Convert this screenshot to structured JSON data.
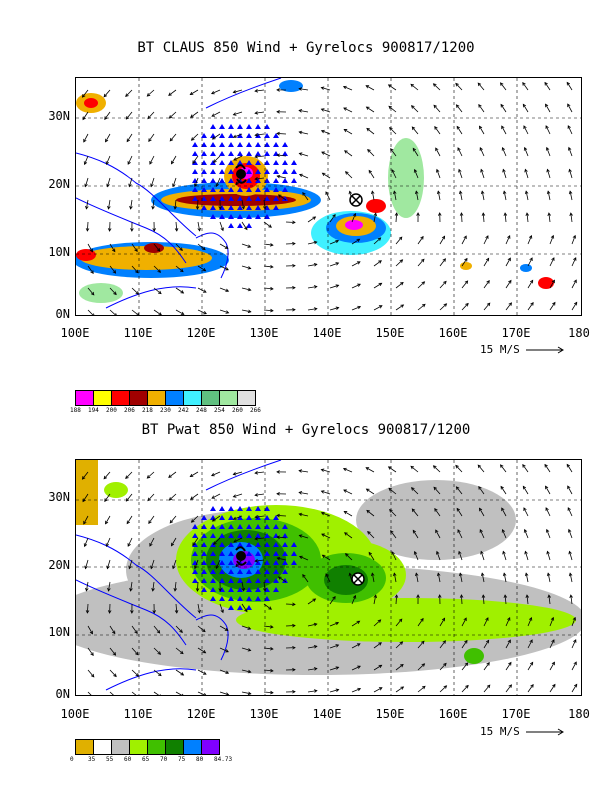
{
  "panel_top": {
    "title": "BT CLAUS 850 Wind + Gyrelocs 900817/1200",
    "y_labels": [
      "30N",
      "20N",
      "10N",
      "0N"
    ],
    "x_labels": [
      "100E",
      "110E",
      "120E",
      "130E",
      "140E",
      "150E",
      "160E",
      "170E",
      "180"
    ],
    "vector_ref": "15 M/S",
    "colorbar_values": [
      "188",
      "194",
      "200",
      "206",
      "218",
      "230",
      "242",
      "248",
      "254",
      "260",
      "266"
    ],
    "colorbar_colors": [
      "#ff00ff",
      "#ffff00",
      "#ff0000",
      "#a00000",
      "#f0b000",
      "#0080ff",
      "#40f0ff",
      "#60c080",
      "#a0e8a0",
      "#e0e0e0"
    ]
  },
  "panel_bottom": {
    "title": "BT Pwat 850 Wind + Gyrelocs 900817/1200",
    "y_labels": [
      "30N",
      "20N",
      "10N",
      "0N"
    ],
    "x_labels": [
      "100E",
      "110E",
      "120E",
      "130E",
      "140E",
      "150E",
      "160E",
      "170E",
      "180"
    ],
    "vector_ref": "15 M/S",
    "colorbar_values": [
      "0",
      "35",
      "55",
      "60",
      "65",
      "70",
      "75",
      "80",
      "84.73"
    ],
    "colorbar_colors": [
      "#e0b000",
      "#ffffff",
      "#c0c0c0",
      "#a0f000",
      "#40c000",
      "#108000",
      "#0080ff",
      "#8000ff"
    ]
  }
}
